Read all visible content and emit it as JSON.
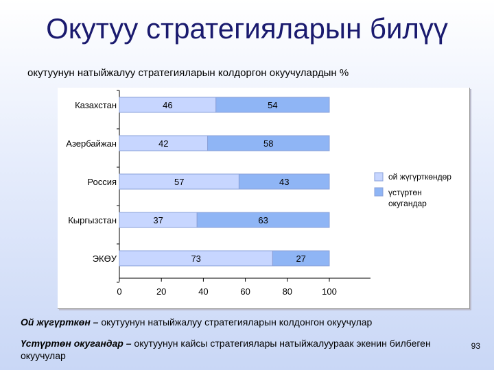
{
  "title": "Окутуу стратегияларын билүү",
  "subtitle": "окутуунун натыйжалуу стратегияларын колдоргон окуучулардын %",
  "colors": {
    "bar_series_1": "#c7d6ff",
    "bar_series_2": "#8fb5f5",
    "bar_border": "#8aa0d8"
  },
  "chart_data": {
    "type": "bar",
    "orientation": "horizontal",
    "stacked": true,
    "categories": [
      "Казахстан",
      "Азербайжан",
      "Россия",
      "Кыргызстан",
      "ЭКӨУ"
    ],
    "series": [
      {
        "name": "ой жүгүрткөндөр",
        "values": [
          46,
          42,
          57,
          37,
          73
        ]
      },
      {
        "name": "үстүртөн окугандар",
        "values": [
          54,
          58,
          43,
          63,
          27
        ]
      }
    ],
    "xlim": [
      0,
      100
    ],
    "xticks": [
      "0",
      "20",
      "40",
      "60",
      "80",
      "100"
    ],
    "legend_position": "right",
    "grid": false
  },
  "notes": [
    {
      "term": "Ой жүгүрткөн –",
      "text": " окутуунун натыйжалуу стратегияларын колдонгон окуучулар"
    },
    {
      "term": "Үстүртөн окугандар –",
      "text": " окутуунун кайсы стратегиялары натыйжалуураак экенин билбеген окуучулар"
    }
  ],
  "page_number": "93"
}
